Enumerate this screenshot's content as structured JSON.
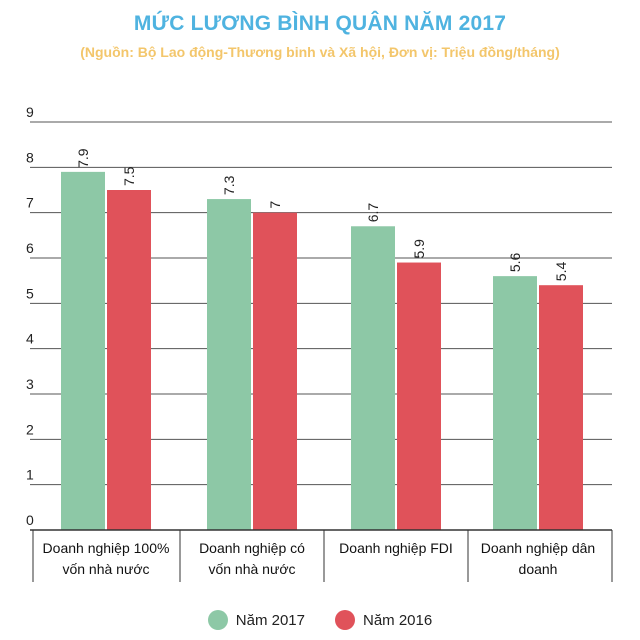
{
  "chart_data": {
    "type": "bar",
    "title": "MỨC LƯƠNG BÌNH QUÂN NĂM 2017",
    "subtitle": "(Nguồn: Bộ Lao động-Thương binh và Xã hội, Đơn vị: Triệu đồng/tháng)",
    "categories": [
      [
        "Doanh nghiệp 100%",
        "vốn nhà nước"
      ],
      [
        "Doanh nghiệp có",
        "vốn nhà nước"
      ],
      [
        "Doanh nghiệp FDI"
      ],
      [
        "Doanh nghiệp dân",
        "doanh"
      ]
    ],
    "series": [
      {
        "name": "Năm 2017",
        "color": "#8dc8a6",
        "values": [
          7.9,
          7.3,
          6.7,
          5.6
        ],
        "labels": [
          "7.9",
          "7.3",
          "6.7",
          "5.6"
        ]
      },
      {
        "name": "Năm 2016",
        "color": "#e0525a",
        "values": [
          7.5,
          7,
          5.9,
          5.4
        ],
        "labels": [
          "7.5",
          "7",
          "5.9",
          "5.4"
        ]
      }
    ],
    "ylim": [
      0,
      9
    ],
    "yticks": [
      "0",
      "1",
      "2",
      "3",
      "4",
      "5",
      "6",
      "7",
      "8",
      "9"
    ],
    "grid": true,
    "legend": "bottom-center"
  }
}
